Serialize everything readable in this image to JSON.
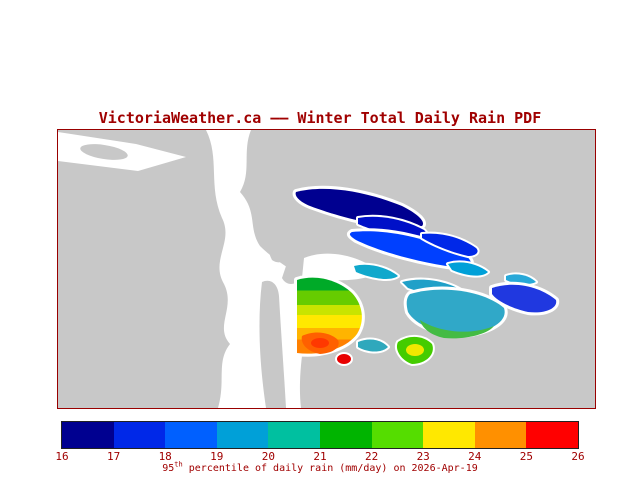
{
  "theme": {
    "accent": "#a00000",
    "frame": "#990000"
  },
  "title": {
    "text": "VictoriaWeather.ca —— Winter Total Daily Rain PDF"
  },
  "map": {
    "land_color": "#c8c8c8",
    "water_color": "#ffffff",
    "palette": {
      "navy": "#000090",
      "navy2": "#0010c8",
      "blue": "#0040ff",
      "blue2": "#0028e8",
      "azure": "#00a0d8",
      "cyan": "#10a8cc",
      "cyan2": "#28a8d8",
      "teal": "#20a0c8",
      "teal2": "#30a8c8",
      "teal3": "#2fa8bc",
      "sea_green": "#44bb44",
      "far_blue": "#2038e0",
      "green": "#00aa28",
      "chartreuse": "#66cc00",
      "yellow_green": "#c8e400",
      "yellow": "#ffe800",
      "amber": "#ffb400",
      "orange": "#ff8000",
      "deep_orange": "#ff6000",
      "orange_red": "#ff3800",
      "red": "#e80000",
      "bright_green": "#44cc00",
      "core_yellow": "#f0e800"
    }
  },
  "colorbar": {
    "colors": [
      "#000090",
      "#0028e8",
      "#0060ff",
      "#00a0d8",
      "#00c0a0",
      "#00b400",
      "#55dd00",
      "#ffe800",
      "#ff9000",
      "#ff0000"
    ],
    "ticks": [
      "16",
      "17",
      "18",
      "19",
      "20",
      "21",
      "22",
      "23",
      "24",
      "25",
      "26"
    ],
    "caption": {
      "prefix": "95",
      "sup": "th",
      "rest": " percentile of daily rain (mm/day) on 2026-Apr-19"
    }
  },
  "chart_data": {
    "type": "heatmap",
    "title": "VictoriaWeather.ca —— Winter Total Daily Rain PDF",
    "colorbar_label": "95th percentile of daily rain (mm/day) on 2026-Apr-19",
    "date": "2026-Apr-19",
    "units": "mm/day",
    "scale_min": 16,
    "scale_max": 26,
    "scale_ticks": [
      16,
      17,
      18,
      19,
      20,
      21,
      22,
      23,
      24,
      25,
      26
    ],
    "legend_position": "bottom",
    "regions": [
      {
        "area": "northeast elongated islands (upper)",
        "value_range": "16-17"
      },
      {
        "area": "northeast elongated islands (lower)",
        "value_range": "17-18"
      },
      {
        "area": "mid-channel small islands",
        "value_range": "18-19"
      },
      {
        "area": "central-east large island",
        "value_range": "19-20"
      },
      {
        "area": "central-east island south rim",
        "value_range": "20-21"
      },
      {
        "area": "far east island",
        "value_range": "17-18"
      },
      {
        "area": "central peninsula north",
        "value_range": "21-22"
      },
      {
        "area": "central peninsula middle",
        "value_range": "22-24"
      },
      {
        "area": "central peninsula south",
        "value_range": "24-25"
      },
      {
        "area": "small southern island core",
        "value_range": "23-24"
      },
      {
        "area": "southern hotspot dot",
        "value_range": "25-26"
      }
    ]
  }
}
